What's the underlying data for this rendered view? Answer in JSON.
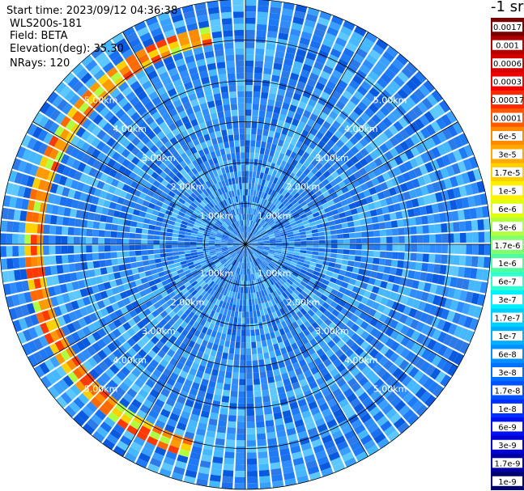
{
  "header": {
    "start_time": "Start time: 2023/09/12 04:36:38",
    "instrument": "WLS200s-181",
    "field": "Field: BETA",
    "elevation": "Elevation(deg): 35.30",
    "nrays": "NRays: 120"
  },
  "colorbar": {
    "title": "-1 sr",
    "labels": [
      "0.0017",
      "0.001",
      "0.0006",
      "0.0003",
      "0.00017",
      "0.0001",
      "6e-5",
      "3e-5",
      "1.7e-5",
      "1e-5",
      "6e-6",
      "3e-6",
      "1.7e-6",
      "1e-6",
      "6e-7",
      "3e-7",
      "1.7e-7",
      "1e-7",
      "6e-8",
      "3e-8",
      "1.7e-8",
      "1e-8",
      "6e-9",
      "3e-9",
      "1.7e-9",
      "1e-9"
    ],
    "colors": [
      "#7a0000",
      "#b00000",
      "#d40000",
      "#f00000",
      "#ff2a00",
      "#ff5a00",
      "#ff8a00",
      "#ffaa00",
      "#ffd000",
      "#fff000",
      "#e0ff10",
      "#b0ff40",
      "#80ff70",
      "#50ffa0",
      "#30ffd0",
      "#00f0ff",
      "#00d0ff",
      "#00b0ff",
      "#0090ff",
      "#0070ff",
      "#0050ff",
      "#0030ff",
      "#0010f0",
      "#0000d0",
      "#0000a0",
      "#000070"
    ]
  },
  "chart_data": {
    "type": "heatmap",
    "projection": "polar (PPI)",
    "field": "BETA",
    "elevation_deg": 35.3,
    "n_rays": 120,
    "max_range_km": 6.0,
    "range_rings_km": [
      1,
      2,
      3,
      4,
      5,
      6
    ],
    "ring_labels": [
      "1.00km",
      "2.00km",
      "3.00km",
      "4.00km",
      "5.00km"
    ],
    "azimuth_lines_deg": [
      0,
      30,
      60,
      90,
      120,
      150,
      180,
      210,
      240,
      270,
      300,
      330
    ],
    "background_level": "1e-8 to 3e-8",
    "feature": {
      "description_level": "1e-6 to 1e-4",
      "range_km_approx": [
        4.9,
        5.4
      ],
      "azimuth_deg_approx": [
        195,
        352
      ]
    }
  }
}
